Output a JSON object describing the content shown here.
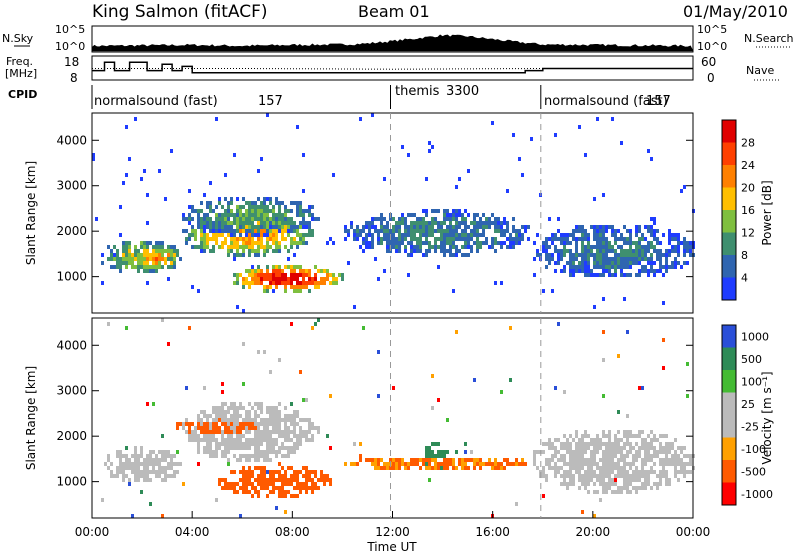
{
  "header": {
    "station": "King Salmon (fitACF)",
    "beam": "Beam 01",
    "date": "01/May/2010"
  },
  "colors": {
    "power": [
      "#1f3cff",
      "#2f65b0",
      "#3f8f6f",
      "#7fbf3f",
      "#ffbf00",
      "#ff8000",
      "#ff4000",
      "#e00000"
    ],
    "velocity": [
      "#ff0000",
      "#ff5a00",
      "#ffa000",
      "#bbbbbb",
      "#bbbbbb",
      "#44bb33",
      "#2e8b57",
      "#2a4fd8"
    ],
    "ground_scatter": "#bbbbbb"
  },
  "chart_data": [
    {
      "id": "nsky-nsearch",
      "type": "line",
      "left_label": "N.Sky",
      "right_label": "N.Search",
      "left_ticks": [
        "10^5",
        "10^0"
      ],
      "right_ticks": [
        "10^5",
        "10^0"
      ],
      "scale": "log",
      "series": [
        {
          "name": "N.Sky",
          "x_hours": [
            0,
            2,
            4,
            6,
            8,
            10,
            11,
            12,
            13,
            14,
            15,
            16,
            17,
            18,
            20,
            22,
            24
          ],
          "log10_values": [
            1.0,
            1.1,
            1.2,
            1.0,
            1.2,
            1.3,
            1.5,
            2.0,
            2.6,
            3.2,
            3.0,
            2.4,
            1.8,
            1.3,
            1.2,
            1.1,
            1.0
          ]
        }
      ]
    },
    {
      "id": "freq-nave",
      "type": "line",
      "left_label": "Freq.",
      "left_unit": "[MHz]",
      "right_label": "Nave",
      "left_ticks": [
        18,
        8
      ],
      "right_ticks": [
        60,
        0
      ],
      "series": [
        {
          "name": "Freq.",
          "x_hours": [
            0,
            0.5,
            0.9,
            1.5,
            2.2,
            2.8,
            3.2,
            3.6,
            4.0,
            12.0,
            17.3,
            18.0,
            24.0
          ],
          "values": [
            12,
            16,
            12,
            16,
            12,
            15,
            12,
            14,
            11,
            11,
            12,
            13,
            13
          ]
        },
        {
          "name": "Nave",
          "x_hours": [
            0,
            6,
            12,
            18,
            24
          ],
          "values": [
            30,
            30,
            28,
            30,
            30
          ]
        }
      ]
    },
    {
      "id": "cpid",
      "type": "table",
      "label": "CPID",
      "segments": [
        {
          "start": 0,
          "end": 12,
          "name": "normalsound (fast)",
          "cpid": "157"
        },
        {
          "start": 12,
          "end": 18,
          "name": "themis",
          "cpid": "3300"
        },
        {
          "start": 18,
          "end": 24,
          "name": "normalsound (fast)",
          "cpid": "157"
        }
      ]
    },
    {
      "id": "power",
      "type": "heatmap",
      "ylabel": "Slant Range [km]",
      "xlim": [
        0,
        24
      ],
      "ylim": [
        200,
        4600
      ],
      "yticks": [
        1000,
        2000,
        3000,
        4000
      ],
      "colorbar": {
        "label": "Power [dB]",
        "ticks": [
          4,
          8,
          12,
          16,
          20,
          24,
          28
        ],
        "range": [
          0,
          32
        ]
      },
      "features": [
        {
          "t": [
            0.3,
            3.5
          ],
          "r": [
            1100,
            1850
          ],
          "level": 14
        },
        {
          "t": [
            1.5,
            3.5
          ],
          "r": [
            1200,
            1700
          ],
          "level": 20
        },
        {
          "t": [
            3.5,
            8.8
          ],
          "r": [
            1500,
            2400
          ],
          "level": 18
        },
        {
          "t": [
            3.5,
            9.0
          ],
          "r": [
            1950,
            2800
          ],
          "level": 10
        },
        {
          "t": [
            5.5,
            10.0
          ],
          "r": [
            700,
            1300
          ],
          "level": 26
        },
        {
          "t": [
            10.0,
            17.5
          ],
          "r": [
            1500,
            2500
          ],
          "level": 8
        },
        {
          "t": [
            17.5,
            24.0
          ],
          "r": [
            1000,
            2200
          ],
          "level": 7
        }
      ]
    },
    {
      "id": "velocity",
      "type": "heatmap",
      "ylabel": "Slant Range [km]",
      "xlabel": "Time UT",
      "xlim": [
        0,
        24
      ],
      "ylim": [
        200,
        4600
      ],
      "yticks": [
        1000,
        2000,
        3000,
        4000
      ],
      "xticks": [
        "00:00",
        "04:00",
        "08:00",
        "12:00",
        "16:00",
        "20:00",
        "00:00"
      ],
      "colorbar": {
        "label": "Velocity [m s⁻¹]",
        "ticks": [
          "1000",
          "500",
          "100",
          "25",
          "-25",
          "-100",
          "-500",
          "-1000"
        ]
      },
      "features": [
        {
          "t": [
            0.3,
            3.5
          ],
          "r": [
            1000,
            1800
          ],
          "velocity": 0,
          "gs": true
        },
        {
          "t": [
            3.5,
            9.0
          ],
          "r": [
            1500,
            2800
          ],
          "velocity": 0,
          "gs": true
        },
        {
          "t": [
            3.2,
            6.5
          ],
          "r": [
            2100,
            2400
          ],
          "velocity": -150
        },
        {
          "t": [
            5.0,
            9.5
          ],
          "r": [
            700,
            1400
          ],
          "velocity": -200
        },
        {
          "t": [
            13.2,
            14.2
          ],
          "r": [
            1300,
            1900
          ],
          "velocity": 150
        },
        {
          "t": [
            10.0,
            17.5
          ],
          "r": [
            1300,
            1600
          ],
          "velocity": -100
        },
        {
          "t": [
            17.5,
            24.0
          ],
          "r": [
            800,
            2200
          ],
          "velocity": 0,
          "gs": true
        }
      ]
    }
  ]
}
